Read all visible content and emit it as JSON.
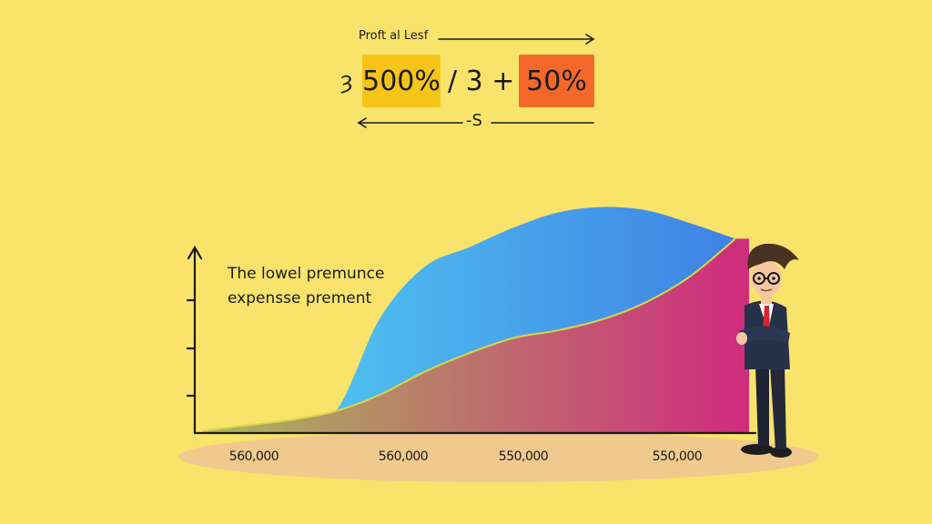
{
  "header": {
    "top_label": "Proft al Lesf",
    "prefix": "ȝ",
    "box_1": "500%",
    "middle": "/ 3 +",
    "box_2": "50%",
    "bottom_label": "-S"
  },
  "annotation": {
    "line_1": "The lowel premunce",
    "line_2": "expensse prement"
  },
  "colors": {
    "background": "#f9e36a",
    "box_1": "#f7c418",
    "box_2": "#f4692a",
    "upper_area_start": "#55d4f3",
    "upper_area_end": "#3f82e4",
    "lower_area_start": "#a9b85c",
    "lower_area_end": "#cf2e7d",
    "ground": "#f0c98e"
  },
  "chart_data": {
    "type": "area",
    "x": [
      0,
      1,
      2,
      3,
      4,
      5,
      6,
      7,
      8,
      9,
      10,
      11,
      12
    ],
    "x_tick_labels": [
      "560,000",
      "560,000",
      "550,000",
      "550,000"
    ],
    "series": [
      {
        "values": [
          0.2,
          0.7,
          1.2,
          2.0,
          10.5,
          15.2,
          17.0,
          18.8,
          20.2,
          20.7,
          20.4,
          19.2,
          17.8
        ]
      },
      {
        "values": [
          0.2,
          0.7,
          1.2,
          2.0,
          3.5,
          5.6,
          7.3,
          8.7,
          9.4,
          10.4,
          12.0,
          14.4,
          17.8
        ]
      }
    ],
    "xlim": [
      0,
      12
    ],
    "ylim": [
      0,
      25
    ],
    "grid": false,
    "legend": "none"
  },
  "character": {
    "icon": "businessman-illustration"
  }
}
